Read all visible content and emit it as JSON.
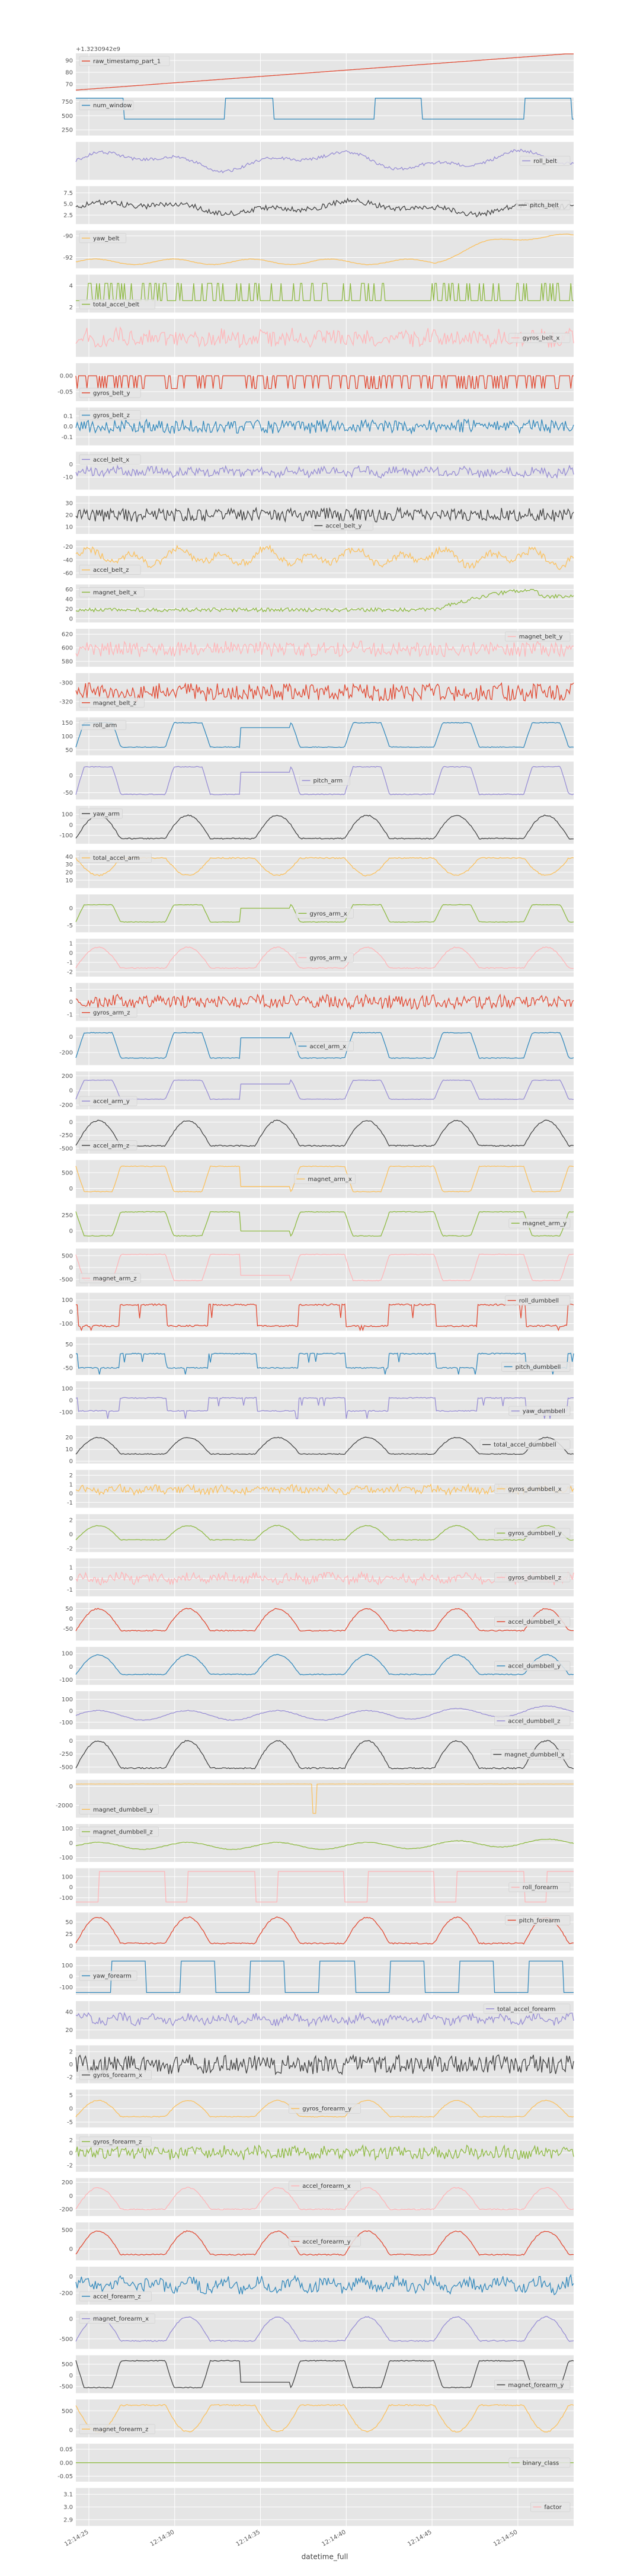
{
  "chart_data": {
    "type": "line",
    "xlabel": "datetime_full",
    "x_ticks": [
      "12:14:25",
      "12:14:30",
      "12:14:35",
      "12:14:40",
      "12:14:45",
      "12:14:50"
    ],
    "first_panel_offset": "+1.3230942e9",
    "series": [
      {
        "name": "raw_timestamp_part_1",
        "color": "#e24a33",
        "legend": "top-left",
        "yticks": [
          "70",
          "80",
          "90"
        ],
        "ylim": [
          64,
          96
        ],
        "pattern": "ramp",
        "base": 65,
        "amp": 31
      },
      {
        "name": "num_window",
        "color": "#348abd",
        "legend": "top-left",
        "yticks": [
          "250",
          "500",
          "750"
        ],
        "ylim": [
          150,
          820
        ],
        "pattern": "square",
        "base": 440,
        "amp": 640,
        "period": 30,
        "duty": 0.32
      },
      {
        "name": "roll_belt",
        "color": "#988ed5",
        "legend": "right",
        "yticks": [],
        "ylim": [
          -1,
          1
        ],
        "pattern": "wave",
        "base": 0,
        "amp": 0.55,
        "noise": 0.15,
        "period": 40
      },
      {
        "name": "pitch_belt",
        "color": "#444444",
        "legend": "right",
        "yticks": [
          "2.5",
          "5.0",
          "7.5"
        ],
        "ylim": [
          0.5,
          9
        ],
        "pattern": "wave",
        "base": 4.2,
        "amp": 1.5,
        "noise": 0.4,
        "period": 45
      },
      {
        "name": "yaw_belt",
        "color": "#fbc15e",
        "legend": "top-left",
        "yticks": [
          "-90",
          "-92"
        ],
        "ylim": [
          -93,
          -89.5
        ],
        "pattern": "trend_end",
        "base": -92.4,
        "amp": 2.3,
        "noise": 0.05
      },
      {
        "name": "total_accel_belt",
        "color": "#8eba42",
        "legend": "bottom-left",
        "yticks": [
          "2",
          "4"
        ],
        "ylim": [
          1.5,
          5
        ],
        "pattern": "binary",
        "base": 2.6,
        "amp": 1.6,
        "rate": 0.25
      },
      {
        "name": "gyros_belt_x",
        "color": "#ffb5b8",
        "legend": "right",
        "yticks": [],
        "ylim": [
          -1,
          1
        ],
        "pattern": "noise",
        "base": 0,
        "amp": 0.55,
        "noise": 0.8
      },
      {
        "name": "gyros_belt_y",
        "color": "#e24a33",
        "legend": "bottom-left",
        "yticks": [
          "0.00",
          "-0.05"
        ],
        "ylim": [
          -0.08,
          0.04
        ],
        "pattern": "binary",
        "base": 0,
        "amp": -0.04,
        "rate": 0.3
      },
      {
        "name": "gyros_belt_z",
        "color": "#348abd",
        "legend": "top-left",
        "yticks": [
          "0.1",
          "0.0",
          "-0.1"
        ],
        "ylim": [
          -0.18,
          0.18
        ],
        "pattern": "noise",
        "base": 0,
        "amp": 0.07,
        "noise": 0.9
      },
      {
        "name": "accel_belt_x",
        "color": "#988ed5",
        "legend": "top-left",
        "yticks": [
          "0",
          "-10"
        ],
        "ylim": [
          -20,
          10
        ],
        "pattern": "noise",
        "base": -6,
        "amp": 5,
        "noise": 0.7
      },
      {
        "name": "accel_belt_y",
        "color": "#444444",
        "legend": "bottom-center",
        "yticks": [
          "30",
          "20",
          "10"
        ],
        "ylim": [
          4,
          36
        ],
        "pattern": "noise",
        "base": 20,
        "amp": 6,
        "noise": 0.9
      },
      {
        "name": "accel_belt_z",
        "color": "#fbc15e",
        "legend": "bottom-left",
        "yticks": [
          "-20",
          "-40",
          "-60"
        ],
        "ylim": [
          -68,
          -10
        ],
        "pattern": "wave",
        "base": -36,
        "amp": 14,
        "noise": 0.4,
        "period": 9
      },
      {
        "name": "magnet_belt_x",
        "color": "#8eba42",
        "legend": "top-left",
        "yticks": [
          "60",
          "40",
          "20",
          "0"
        ],
        "ylim": [
          -8,
          70
        ],
        "pattern": "trend_end_noise",
        "base": 18,
        "amp": 40,
        "noise": 0.4
      },
      {
        "name": "magnet_belt_y",
        "color": "#ffb5b8",
        "legend": "top-right",
        "yticks": [
          "620",
          "600",
          "580"
        ],
        "ylim": [
          572,
          628
        ],
        "pattern": "noise",
        "base": 598,
        "amp": 12,
        "noise": 0.9
      },
      {
        "name": "magnet_belt_z",
        "color": "#e24a33",
        "legend": "bottom-left",
        "yticks": [
          "-300",
          "-320"
        ],
        "ylim": [
          -330,
          -290
        ],
        "pattern": "noise",
        "base": -310,
        "amp": 10,
        "noise": 0.9
      },
      {
        "name": "roll_arm",
        "color": "#348abd",
        "legend": "top-left",
        "yticks": [
          "150",
          "100",
          "50"
        ],
        "ylim": [
          30,
          170
        ],
        "pattern": "plateau",
        "base": 60,
        "amp": 90,
        "period": 18,
        "gap": [
          0.33,
          0.43
        ]
      },
      {
        "name": "pitch_arm",
        "color": "#988ed5",
        "legend": "center",
        "yticks": [
          "0",
          "-50"
        ],
        "ylim": [
          -70,
          40
        ],
        "pattern": "plateau",
        "base": -55,
        "amp": 80,
        "period": 18,
        "gap": [
          0.33,
          0.43
        ]
      },
      {
        "name": "yaw_arm",
        "color": "#444444",
        "legend": "top-left",
        "yticks": [
          "100",
          "0",
          "-100"
        ],
        "ylim": [
          -180,
          180
        ],
        "pattern": "bumps",
        "base": -130,
        "amp": 220,
        "period": 18
      },
      {
        "name": "total_accel_arm",
        "color": "#fbc15e",
        "legend": "top-left",
        "yticks": [
          "40",
          "30",
          "20",
          "10"
        ],
        "ylim": [
          0,
          48
        ],
        "pattern": "bumps_inv",
        "base": 38,
        "amp": -22,
        "period": 18
      },
      {
        "name": "gyros_arm_x",
        "color": "#8eba42",
        "legend": "center",
        "yticks": [
          "0",
          "-5"
        ],
        "ylim": [
          -7,
          4
        ],
        "pattern": "plateau",
        "base": -4,
        "amp": 5,
        "period": 18,
        "gap": [
          0.33,
          0.43
        ]
      },
      {
        "name": "gyros_arm_y",
        "color": "#ffb5b8",
        "legend": "center",
        "yticks": [
          "1",
          "0",
          "-1",
          "-2"
        ],
        "ylim": [
          -2.5,
          1.5
        ],
        "pattern": "bumps",
        "base": -1.6,
        "amp": 2.2,
        "period": 18
      },
      {
        "name": "gyros_arm_z",
        "color": "#e24a33",
        "legend": "bottom-left",
        "yticks": [
          "1",
          "0",
          "-1"
        ],
        "ylim": [
          -1.5,
          1.5
        ],
        "pattern": "noise",
        "base": 0,
        "amp": 0.6,
        "noise": 0.85
      },
      {
        "name": "accel_arm_x",
        "color": "#348abd",
        "legend": "center",
        "yticks": [
          "0",
          "-200"
        ],
        "ylim": [
          -360,
          120
        ],
        "pattern": "plateau",
        "base": -270,
        "amp": 320,
        "period": 18,
        "gap": [
          0.33,
          0.43
        ]
      },
      {
        "name": "accel_arm_y",
        "color": "#988ed5",
        "legend": "bottom-left",
        "yticks": [
          "200",
          "0",
          "-200"
        ],
        "ylim": [
          -260,
          260
        ],
        "pattern": "plateau",
        "base": -120,
        "amp": 260,
        "period": 18,
        "gap": [
          0.33,
          0.43
        ]
      },
      {
        "name": "accel_arm_z",
        "color": "#444444",
        "legend": "bottom-left",
        "yticks": [
          "0",
          "-250",
          "-500"
        ],
        "ylim": [
          -600,
          120
        ],
        "pattern": "bumps",
        "base": -450,
        "amp": 480,
        "period": 18
      },
      {
        "name": "magnet_arm_x",
        "color": "#fbc15e",
        "legend": "center",
        "yticks": [
          "500",
          "0"
        ],
        "ylim": [
          -300,
          900
        ],
        "pattern": "plateau",
        "base": 700,
        "amp": -800,
        "period": 18,
        "gap": [
          0.33,
          0.43
        ]
      },
      {
        "name": "magnet_arm_y",
        "color": "#8eba42",
        "legend": "right",
        "yticks": [
          "250",
          "0"
        ],
        "ylim": [
          -180,
          420
        ],
        "pattern": "plateau",
        "base": 300,
        "amp": -380,
        "period": 18,
        "gap": [
          0.33,
          0.43
        ]
      },
      {
        "name": "magnet_arm_z",
        "color": "#ffb5b8",
        "legend": "bottom-left",
        "yticks": [
          "500",
          "0",
          "-500"
        ],
        "ylim": [
          -800,
          800
        ],
        "pattern": "plateau",
        "base": 550,
        "amp": -1100,
        "period": 18,
        "gap": [
          0.33,
          0.43
        ]
      },
      {
        "name": "roll_dumbbell",
        "color": "#e24a33",
        "legend": "top-right",
        "yticks": [
          "100",
          "0",
          "-100"
        ],
        "ylim": [
          -160,
          160
        ],
        "pattern": "spiky",
        "base": 60,
        "amp": -180,
        "period": 18
      },
      {
        "name": "pitch_dumbbell",
        "color": "#348abd",
        "legend": "bottom-right",
        "yticks": [
          "50",
          "0",
          "-50"
        ],
        "ylim": [
          -80,
          80
        ],
        "pattern": "spiky",
        "base": 10,
        "amp": -60,
        "period": 18
      },
      {
        "name": "yaw_dumbbell",
        "color": "#988ed5",
        "legend": "bottom-right",
        "yticks": [
          "100",
          "0",
          "-100"
        ],
        "ylim": [
          -160,
          160
        ],
        "pattern": "spiky",
        "base": 20,
        "amp": -110,
        "period": 18
      },
      {
        "name": "total_accel_dumbbell",
        "color": "#444444",
        "legend": "right",
        "yticks": [
          "20",
          "10",
          "0"
        ],
        "ylim": [
          -2,
          30
        ],
        "pattern": "bumps",
        "base": 6,
        "amp": 14,
        "period": 18
      },
      {
        "name": "gyros_dumbbell_x",
        "color": "#fbc15e",
        "legend": "right",
        "yticks": [
          "2",
          "1",
          "0",
          "-1"
        ],
        "ylim": [
          -1.6,
          2.6
        ],
        "pattern": "noise",
        "base": 0.4,
        "amp": 0.6,
        "noise": 0.7
      },
      {
        "name": "gyros_dumbbell_y",
        "color": "#8eba42",
        "legend": "right",
        "yticks": [
          "2",
          "0",
          "-2"
        ],
        "ylim": [
          -2.5,
          2.8
        ],
        "pattern": "bumps",
        "base": -0.8,
        "amp": 2,
        "period": 18
      },
      {
        "name": "gyros_dumbbell_z",
        "color": "#ffb5b8",
        "legend": "right",
        "yticks": [
          "1",
          "0",
          "-1"
        ],
        "ylim": [
          -1.6,
          1.8
        ],
        "pattern": "noise",
        "base": 0,
        "amp": 0.6,
        "noise": 0.7
      },
      {
        "name": "accel_dumbbell_x",
        "color": "#e24a33",
        "legend": "right",
        "yticks": [
          "50",
          "0",
          "-50"
        ],
        "ylim": [
          -110,
          80
        ],
        "pattern": "bumps",
        "base": -60,
        "amp": 110,
        "period": 18
      },
      {
        "name": "accel_dumbbell_y",
        "color": "#348abd",
        "legend": "right",
        "yticks": [
          "100",
          "0",
          "-100"
        ],
        "ylim": [
          -140,
          150
        ],
        "pattern": "bumps",
        "base": -60,
        "amp": 150,
        "period": 18
      },
      {
        "name": "accel_dumbbell_z",
        "color": "#988ed5",
        "legend": "bottom-right",
        "yticks": [
          "100",
          "0",
          "-100"
        ],
        "ylim": [
          -160,
          170
        ],
        "pattern": "trend_wave",
        "base": -40,
        "amp": 70,
        "period": 18
      },
      {
        "name": "magnet_dumbbell_x",
        "color": "#444444",
        "legend": "right",
        "yticks": [
          "0",
          "-250",
          "-500"
        ],
        "ylim": [
          -620,
          100
        ],
        "pattern": "bumps",
        "base": -520,
        "amp": 520,
        "period": 18
      },
      {
        "name": "magnet_dumbbell_y",
        "color": "#fbc15e",
        "legend": "bottom-left",
        "yticks": [
          "0",
          "-2000"
        ],
        "ylim": [
          -3300,
          700
        ],
        "pattern": "flat_spike",
        "base": 250,
        "amp": -3100
      },
      {
        "name": "magnet_dumbbell_z",
        "color": "#8eba42",
        "legend": "top-left",
        "yticks": [
          "100",
          "0",
          "-100"
        ],
        "ylim": [
          -130,
          130
        ],
        "pattern": "trend_wave",
        "base": -20,
        "amp": 40,
        "period": 18
      },
      {
        "name": "roll_forearm",
        "color": "#ffb5b8",
        "legend": "right",
        "yticks": [
          "100",
          "0",
          "-100"
        ],
        "ylim": [
          -180,
          180
        ],
        "pattern": "square",
        "base": 150,
        "amp": -290,
        "period": 18,
        "duty": 0.25
      },
      {
        "name": "pitch_forearm",
        "color": "#e24a33",
        "legend": "top-right",
        "yticks": [
          "50",
          "25",
          "0"
        ],
        "ylim": [
          -10,
          70
        ],
        "pattern": "bumps",
        "base": 5,
        "amp": 55,
        "period": 18
      },
      {
        "name": "yaw_forearm",
        "color": "#348abd",
        "legend": "left",
        "yticks": [
          "100",
          "0",
          "-100"
        ],
        "ylim": [
          -170,
          180
        ],
        "pattern": "square",
        "base": 140,
        "amp": -290,
        "period": 14,
        "duty": 0.5
      },
      {
        "name": "total_accel_forearm",
        "color": "#988ed5",
        "legend": "top-right",
        "yticks": [
          "40",
          "20"
        ],
        "ylim": [
          10,
          52
        ],
        "pattern": "noise",
        "base": 32,
        "amp": 8,
        "noise": 0.6
      },
      {
        "name": "gyros_forearm_x",
        "color": "#444444",
        "legend": "bottom-left",
        "yticks": [
          "2",
          "0",
          "-2"
        ],
        "ylim": [
          -3,
          3
        ],
        "pattern": "noise",
        "base": 0,
        "amp": 1.6,
        "noise": 0.9
      },
      {
        "name": "gyros_forearm_y",
        "color": "#fbc15e",
        "legend": "center",
        "yticks": [
          "5",
          "0",
          "-5"
        ],
        "ylim": [
          -7,
          7
        ],
        "pattern": "bumps",
        "base": -3,
        "amp": 6,
        "period": 18
      },
      {
        "name": "gyros_forearm_z",
        "color": "#8eba42",
        "legend": "top-left",
        "yticks": [
          "2",
          "0",
          "-2"
        ],
        "ylim": [
          -3,
          3
        ],
        "pattern": "noise",
        "base": 0,
        "amp": 1.2,
        "noise": 0.8
      },
      {
        "name": "accel_forearm_x",
        "color": "#ffb5b8",
        "legend": "top-center",
        "yticks": [
          "200",
          "0",
          "-200"
        ],
        "ylim": [
          -300,
          260
        ],
        "pattern": "bumps",
        "base": -200,
        "amp": 320,
        "period": 18
      },
      {
        "name": "accel_forearm_y",
        "color": "#e24a33",
        "legend": "center",
        "yticks": [
          "500",
          "0"
        ],
        "ylim": [
          -300,
          700
        ],
        "pattern": "bumps",
        "base": -150,
        "amp": 620,
        "period": 18
      },
      {
        "name": "accel_forearm_z",
        "color": "#348abd",
        "legend": "bottom-left",
        "yticks": [
          "0",
          "-200"
        ],
        "ylim": [
          -340,
          120
        ],
        "pattern": "noise",
        "base": -100,
        "amp": 120,
        "noise": 0.6
      },
      {
        "name": "magnet_forearm_x",
        "color": "#988ed5",
        "legend": "top-left",
        "yticks": [
          "0",
          "-500"
        ],
        "ylim": [
          -750,
          200
        ],
        "pattern": "bumps",
        "base": -550,
        "amp": 600,
        "period": 18
      },
      {
        "name": "magnet_forearm_y",
        "color": "#444444",
        "legend": "bottom-right",
        "yticks": [
          "500",
          "0",
          "-500"
        ],
        "ylim": [
          -800,
          900
        ],
        "pattern": "plateau",
        "base": 650,
        "amp": -1200,
        "period": 18,
        "gap": [
          0.33,
          0.43
        ]
      },
      {
        "name": "magnet_forearm_z",
        "color": "#fbc15e",
        "legend": "bottom-left",
        "yticks": [
          "500",
          "0"
        ],
        "ylim": [
          -200,
          800
        ],
        "pattern": "bumps",
        "base": 650,
        "amp": -700,
        "period": 18
      },
      {
        "name": "binary_class",
        "color": "#8eba42",
        "legend": "right",
        "yticks": [
          "0.05",
          "0.00",
          "-0.05"
        ],
        "ylim": [
          -0.07,
          0.07
        ],
        "pattern": "flat",
        "base": 0,
        "amp": 0
      },
      {
        "name": "factor",
        "color": "#ffb5b8",
        "legend": "right",
        "yticks": [
          "3.1",
          "3.0",
          "2.9"
        ],
        "ylim": [
          2.85,
          3.15
        ],
        "pattern": "none",
        "base": 3.0,
        "amp": 0
      }
    ]
  }
}
